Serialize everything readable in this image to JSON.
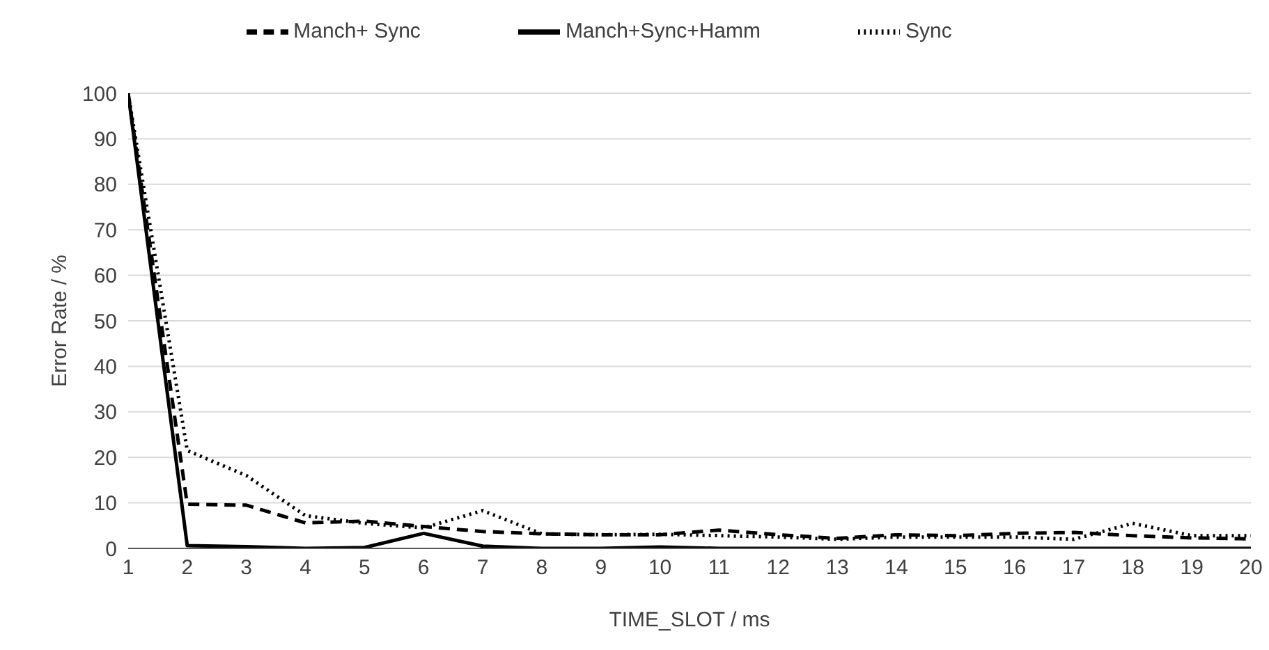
{
  "chart_data": {
    "type": "line",
    "xlabel": "TIME_SLOT / ms",
    "ylabel": "Error Rate / %",
    "x": [
      1,
      2,
      3,
      4,
      5,
      6,
      7,
      8,
      9,
      10,
      11,
      12,
      13,
      14,
      15,
      16,
      17,
      18,
      19,
      20
    ],
    "xlim": [
      1,
      20
    ],
    "xticks": [
      1,
      2,
      3,
      4,
      5,
      6,
      7,
      8,
      9,
      10,
      11,
      12,
      13,
      14,
      15,
      16,
      17,
      18,
      19,
      20
    ],
    "ylim": [
      0,
      100
    ],
    "yticks": [
      0,
      10,
      20,
      30,
      40,
      50,
      60,
      70,
      80,
      90,
      100
    ],
    "grid": "y",
    "legend": "top",
    "marker": "none",
    "series": [
      {
        "name": "Manch+Sync+Hamm",
        "color": "#000000",
        "line_style": "solid",
        "values": [
          100,
          0.6,
          0.4,
          0,
          0.2,
          3.3,
          0.5,
          0,
          0,
          0.3,
          0,
          0,
          0,
          0,
          0,
          0,
          0,
          0,
          0,
          0
        ]
      },
      {
        "name": "Manch+ Sync",
        "color": "#000000",
        "line_style": "dashed",
        "values": [
          100,
          9.7,
          9.5,
          5.6,
          6,
          4.8,
          3.7,
          3.2,
          3,
          3,
          4,
          3,
          2.2,
          3,
          2.8,
          3.3,
          3.5,
          2.8,
          2.3,
          2.1
        ]
      },
      {
        "name": "Sync",
        "color": "#000000",
        "line_style": "dotted",
        "values": [
          100,
          21.5,
          16,
          7.2,
          5.5,
          4.5,
          8.3,
          3.2,
          3,
          3.1,
          2.8,
          2.5,
          2,
          2.5,
          2.5,
          2.5,
          2,
          5.5,
          2.8,
          2.8
        ]
      }
    ]
  }
}
